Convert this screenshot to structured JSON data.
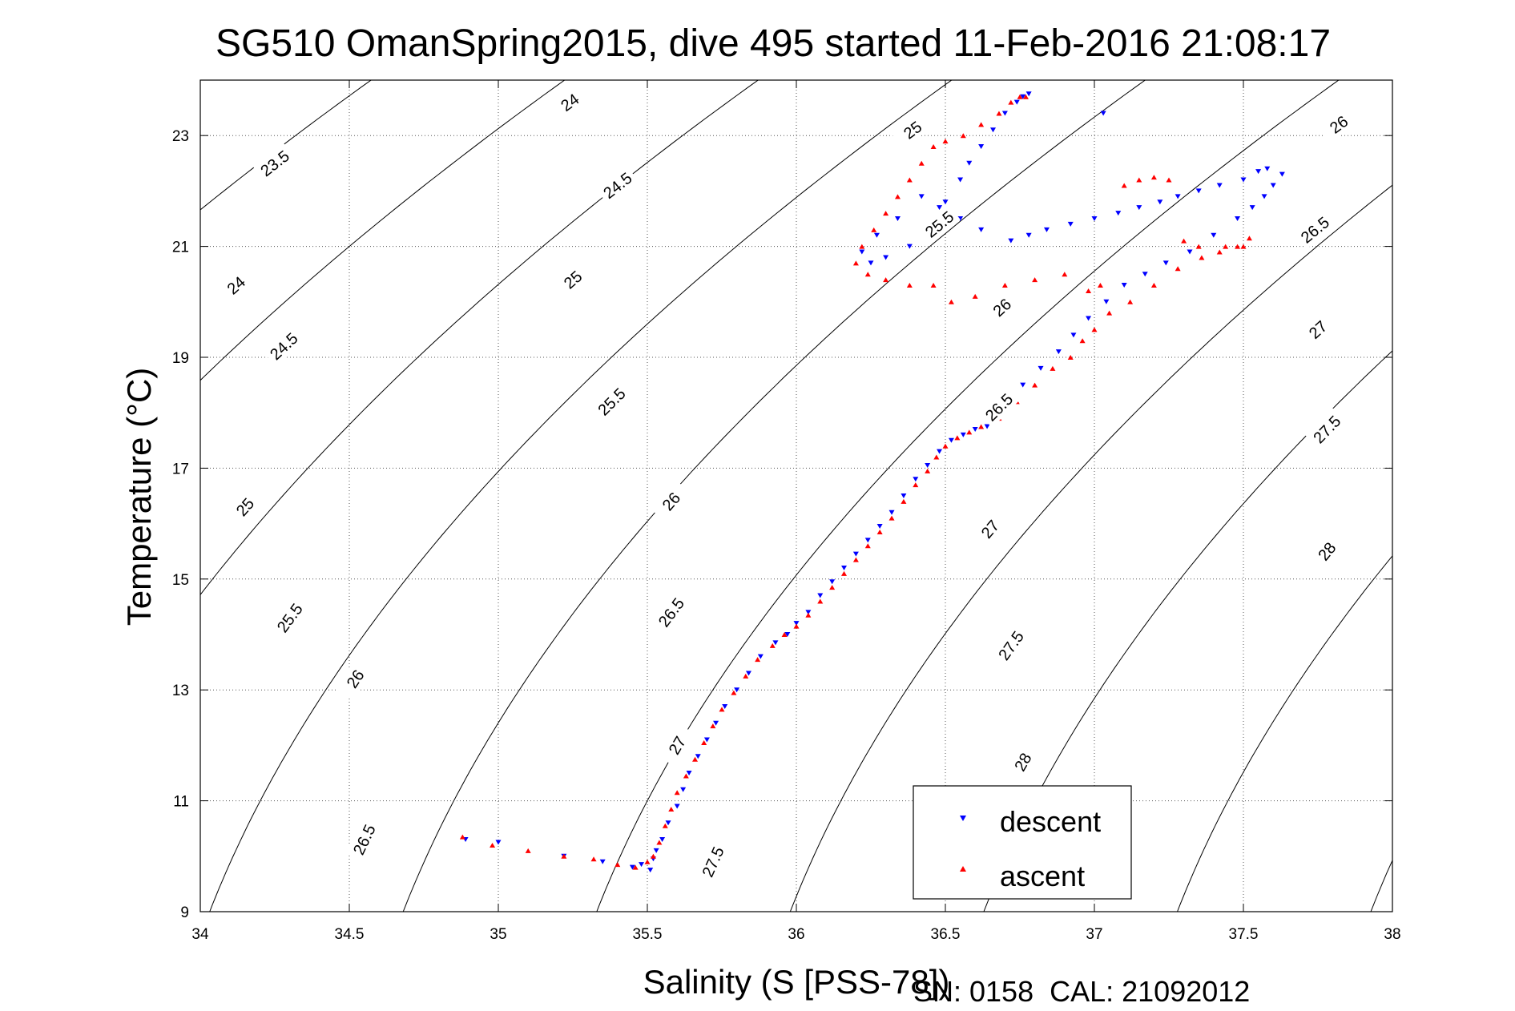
{
  "chart_data": {
    "type": "scatter",
    "title": "SG510 OmanSpring2015, dive 495 started 11-Feb-2016 21:08:17",
    "xlabel": "Salinity (S [PSS-78])",
    "ylabel": "Temperature (°C)",
    "xlim": [
      34,
      38
    ],
    "ylim": [
      9,
      24
    ],
    "xticks": [
      34,
      34.5,
      35,
      35.5,
      36,
      36.5,
      37,
      37.5,
      38
    ],
    "xtick_labels": [
      "34",
      "34.5",
      "35",
      "35.5",
      "36",
      "36.5",
      "37",
      "37.5",
      "38"
    ],
    "yticks": [
      9,
      11,
      13,
      15,
      17,
      19,
      21,
      23
    ],
    "ytick_labels": [
      "9",
      "11",
      "13",
      "15",
      "17",
      "19",
      "21",
      "23"
    ],
    "grid": true,
    "legend_position": "bottom-right",
    "footer": "SN: 0158  CAL: 21092012",
    "contours": [
      {
        "level": "23.5",
        "labels": [
          [
            34.25,
            22.5
          ]
        ]
      },
      {
        "level": "24",
        "labels": [
          [
            35.24,
            23.6
          ],
          [
            34.12,
            20.3
          ]
        ]
      },
      {
        "level": "24.5",
        "labels": [
          [
            35.4,
            22.1
          ],
          [
            34.28,
            19.2
          ]
        ]
      },
      {
        "level": "25",
        "labels": [
          [
            36.39,
            23.1
          ],
          [
            35.25,
            20.4
          ],
          [
            34.15,
            16.3
          ]
        ]
      },
      {
        "level": "25.5",
        "labels": [
          [
            36.48,
            21.4
          ],
          [
            35.38,
            18.2
          ],
          [
            34.3,
            14.3
          ]
        ]
      },
      {
        "level": "26",
        "labels": [
          [
            37.82,
            23.2
          ],
          [
            36.69,
            19.9
          ],
          [
            35.58,
            16.4
          ],
          [
            34.52,
            13.2
          ]
        ]
      },
      {
        "level": "26.5",
        "labels": [
          [
            37.74,
            21.3
          ],
          [
            36.68,
            18.1
          ],
          [
            35.58,
            14.4
          ],
          [
            34.55,
            10.3
          ]
        ]
      },
      {
        "level": "27",
        "labels": [
          [
            37.75,
            19.5
          ],
          [
            36.65,
            15.9
          ],
          [
            35.6,
            12.0
          ]
        ]
      },
      {
        "level": "27.5",
        "labels": [
          [
            37.78,
            17.7
          ],
          [
            36.72,
            13.8
          ],
          [
            35.72,
            9.9
          ]
        ]
      },
      {
        "level": "28",
        "labels": [
          [
            37.78,
            15.5
          ],
          [
            36.76,
            11.7
          ]
        ]
      }
    ],
    "series": [
      {
        "name": "descent",
        "color": "#0000ff",
        "marker": "triangle-down",
        "x": [
          34.89,
          35.0,
          35.22,
          35.35,
          35.45,
          35.48,
          35.51,
          35.52,
          35.53,
          35.55,
          35.57,
          35.6,
          35.62,
          35.64,
          35.67,
          35.7,
          35.73,
          35.76,
          35.8,
          35.84,
          35.88,
          35.93,
          35.97,
          36.0,
          36.04,
          36.08,
          36.12,
          36.16,
          36.2,
          36.24,
          36.28,
          36.32,
          36.36,
          36.4,
          36.44,
          36.48,
          36.52,
          36.56,
          36.6,
          36.64,
          36.7,
          36.76,
          36.82,
          36.88,
          36.93,
          36.98,
          37.04,
          37.1,
          37.17,
          37.24,
          37.32,
          37.4,
          37.48,
          37.53,
          37.57,
          37.6,
          37.63,
          37.58,
          37.55,
          37.5,
          37.42,
          37.35,
          37.28,
          37.22,
          37.15,
          37.08,
          37.0,
          36.92,
          36.84,
          36.78,
          36.72,
          36.62,
          36.55,
          36.48,
          36.42,
          36.34,
          36.27,
          36.22,
          36.25,
          36.3,
          36.38,
          36.45,
          36.5,
          36.55,
          36.58,
          36.62,
          36.66,
          36.7,
          36.74,
          36.76,
          36.78,
          37.03
        ],
        "y": [
          10.3,
          10.25,
          10.0,
          9.9,
          9.8,
          9.85,
          9.75,
          9.95,
          10.1,
          10.3,
          10.6,
          10.9,
          11.2,
          11.5,
          11.8,
          12.1,
          12.4,
          12.7,
          13.0,
          13.3,
          13.6,
          13.85,
          14.0,
          14.2,
          14.4,
          14.7,
          14.95,
          15.2,
          15.45,
          15.7,
          15.95,
          16.2,
          16.5,
          16.8,
          17.05,
          17.3,
          17.5,
          17.6,
          17.7,
          17.75,
          18.1,
          18.5,
          18.8,
          19.1,
          19.4,
          19.7,
          20.0,
          20.3,
          20.5,
          20.7,
          20.9,
          21.2,
          21.5,
          21.7,
          21.9,
          22.1,
          22.3,
          22.4,
          22.35,
          22.2,
          22.1,
          22.0,
          21.9,
          21.8,
          21.7,
          21.6,
          21.5,
          21.4,
          21.3,
          21.2,
          21.1,
          21.3,
          21.5,
          21.7,
          21.9,
          21.5,
          21.2,
          20.9,
          20.7,
          20.8,
          21.0,
          21.4,
          21.8,
          22.2,
          22.5,
          22.8,
          23.1,
          23.4,
          23.6,
          23.7,
          23.75,
          23.4
        ]
      },
      {
        "name": "ascent",
        "color": "#ff0000",
        "marker": "triangle-up",
        "x": [
          34.88,
          34.98,
          35.1,
          35.22,
          35.32,
          35.4,
          35.46,
          35.5,
          35.52,
          35.54,
          35.56,
          35.58,
          35.6,
          35.63,
          35.66,
          35.69,
          35.72,
          35.75,
          35.79,
          35.83,
          35.87,
          35.92,
          35.96,
          36.0,
          36.04,
          36.08,
          36.12,
          36.16,
          36.2,
          36.24,
          36.28,
          36.32,
          36.36,
          36.4,
          36.44,
          36.47,
          36.5,
          36.54,
          36.58,
          36.62,
          36.68,
          36.74,
          36.8,
          36.86,
          36.92,
          36.96,
          37.0,
          37.05,
          37.12,
          37.2,
          37.28,
          37.36,
          37.44,
          37.5,
          37.52,
          37.48,
          37.42,
          37.35,
          37.3,
          37.25,
          37.2,
          37.15,
          37.1,
          37.02,
          36.98,
          36.9,
          36.8,
          36.7,
          36.6,
          36.52,
          36.46,
          36.38,
          36.3,
          36.24,
          36.2,
          36.22,
          36.26,
          36.3,
          36.34,
          36.38,
          36.42,
          36.46,
          36.5,
          36.56,
          36.62,
          36.68,
          36.72,
          36.75,
          36.77
        ],
        "y": [
          10.35,
          10.2,
          10.1,
          10.0,
          9.95,
          9.85,
          9.8,
          9.9,
          10.0,
          10.25,
          10.55,
          10.85,
          11.15,
          11.45,
          11.75,
          12.05,
          12.35,
          12.65,
          12.95,
          13.25,
          13.55,
          13.8,
          14.0,
          14.15,
          14.35,
          14.6,
          14.85,
          15.1,
          15.35,
          15.6,
          15.85,
          16.1,
          16.4,
          16.7,
          16.95,
          17.2,
          17.4,
          17.55,
          17.65,
          17.75,
          17.9,
          18.2,
          18.5,
          18.8,
          19.0,
          19.3,
          19.5,
          19.8,
          20.0,
          20.3,
          20.6,
          20.8,
          21.0,
          21.0,
          21.15,
          21.0,
          20.9,
          21.0,
          21.1,
          22.2,
          22.25,
          22.2,
          22.1,
          20.3,
          20.2,
          20.5,
          20.4,
          20.3,
          20.1,
          20.0,
          20.3,
          20.3,
          20.4,
          20.5,
          20.7,
          21.0,
          21.3,
          21.6,
          21.9,
          22.2,
          22.5,
          22.8,
          22.9,
          23.0,
          23.2,
          23.4,
          23.6,
          23.7,
          23.7
        ]
      }
    ]
  }
}
